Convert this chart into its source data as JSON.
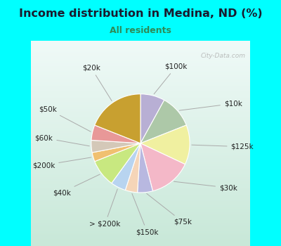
{
  "title": "Income distribution in Medina, ND (%)",
  "subtitle": "All residents",
  "slices": [
    {
      "label": "$100k",
      "value": 8,
      "color": "#b8afd4"
    },
    {
      "label": "$10k",
      "value": 11,
      "color": "#adc8a8"
    },
    {
      "label": "$125k",
      "value": 13,
      "color": "#f0f0a0"
    },
    {
      "label": "$30k",
      "value": 14,
      "color": "#f4b8c8"
    },
    {
      "label": "$75k",
      "value": 5,
      "color": "#b8b8e0"
    },
    {
      "label": "$150k",
      "value": 4,
      "color": "#f5d5b8"
    },
    {
      "label": "> $200k",
      "value": 5,
      "color": "#b8d4f0"
    },
    {
      "label": "$40k",
      "value": 9,
      "color": "#c8e880"
    },
    {
      "label": "$200k",
      "value": 3,
      "color": "#f0c070"
    },
    {
      "label": "$60k",
      "value": 4,
      "color": "#d4c8b8"
    },
    {
      "label": "$50k",
      "value": 5,
      "color": "#e89898"
    },
    {
      "label": "$20k",
      "value": 19,
      "color": "#c8a030"
    }
  ],
  "watermark": "City-Data.com",
  "title_color": "#1a1a2e",
  "subtitle_color": "#2e8b57",
  "bg_top_color": "#00FFFF",
  "chart_bg_top": "#f0faf8",
  "chart_bg_bottom": "#c8e8d8",
  "label_fontsize": 7.5,
  "title_fontsize": 11.5,
  "subtitle_fontsize": 9
}
